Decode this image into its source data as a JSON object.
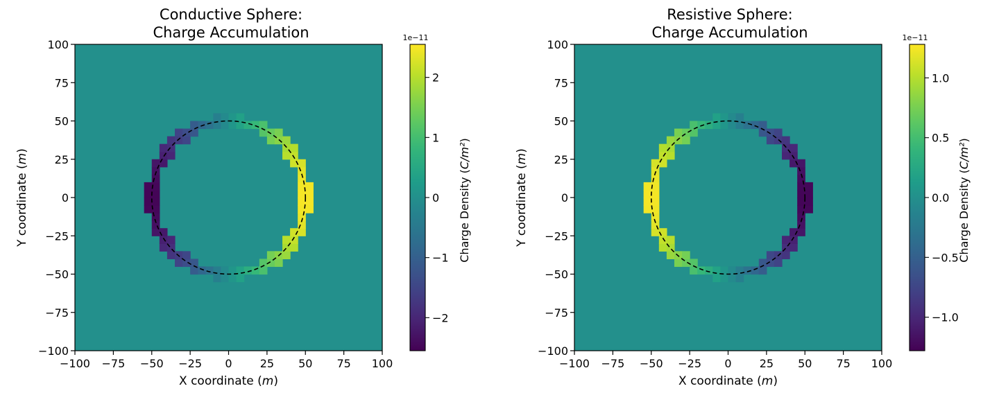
{
  "chart_data": [
    {
      "type": "heatmap",
      "title": "Conductive Sphere:\nCharge Accumulation",
      "xlabel": "X coordinate (m)",
      "ylabel": "Y coordinate (m)",
      "xlim": [
        -100,
        100
      ],
      "ylim": [
        -100,
        100
      ],
      "x_ticks": [
        -100,
        -75,
        -50,
        -25,
        0,
        25,
        50,
        75,
        100
      ],
      "y_ticks": [
        -100,
        -75,
        -50,
        -25,
        0,
        25,
        50,
        75,
        100
      ],
      "x_tick_labels": [
        "−100",
        "−75",
        "−50",
        "−25",
        "0",
        "25",
        "50",
        "75",
        "100"
      ],
      "y_tick_labels": [
        "−100",
        "−75",
        "−50",
        "−25",
        "0",
        "25",
        "50",
        "75",
        "100"
      ],
      "grid": false,
      "colormap": "viridis",
      "cell_size": 5,
      "sphere": {
        "center": [
          0,
          0
        ],
        "radius": 50,
        "style": "dashed",
        "color": "#000000"
      },
      "field": {
        "description": "surface charge density on the sphere boundary, zero elsewhere",
        "pattern": "cos",
        "peak": 2.5e-11,
        "sign": 1
      },
      "colorbar": {
        "label": "Charge Density (C/m²)",
        "exponent_label": "1e−11",
        "range": [
          -2.55,
          2.55
        ],
        "ticks": [
          -2,
          -1,
          0,
          1,
          2
        ],
        "tick_labels": [
          "−2",
          "−1",
          "0",
          "1",
          "2"
        ]
      }
    },
    {
      "type": "heatmap",
      "title": "Resistive Sphere:\nCharge Accumulation",
      "xlabel": "X coordinate (m)",
      "ylabel": "Y coordinate (m)",
      "xlim": [
        -100,
        100
      ],
      "ylim": [
        -100,
        100
      ],
      "x_ticks": [
        -100,
        -75,
        -50,
        -25,
        0,
        25,
        50,
        75,
        100
      ],
      "y_ticks": [
        -100,
        -75,
        -50,
        -25,
        0,
        25,
        50,
        75,
        100
      ],
      "x_tick_labels": [
        "−100",
        "−75",
        "−50",
        "−25",
        "0",
        "25",
        "50",
        "75",
        "100"
      ],
      "y_tick_labels": [
        "−100",
        "−75",
        "−50",
        "−25",
        "0",
        "25",
        "50",
        "75",
        "100"
      ],
      "grid": false,
      "colormap": "viridis",
      "cell_size": 5,
      "sphere": {
        "center": [
          0,
          0
        ],
        "radius": 50,
        "style": "dashed",
        "color": "#000000"
      },
      "field": {
        "description": "surface charge density on the sphere boundary, zero elsewhere",
        "pattern": "cos",
        "peak": 1.25e-11,
        "sign": -1
      },
      "colorbar": {
        "label": "Charge Density (C/m²)",
        "exponent_label": "1e−11",
        "range": [
          -1.28,
          1.28
        ],
        "ticks": [
          -1.0,
          -0.5,
          0.0,
          0.5,
          1.0
        ],
        "tick_labels": [
          "−1.0",
          "−0.5",
          "0.0",
          "0.5",
          "1.0"
        ]
      }
    }
  ]
}
